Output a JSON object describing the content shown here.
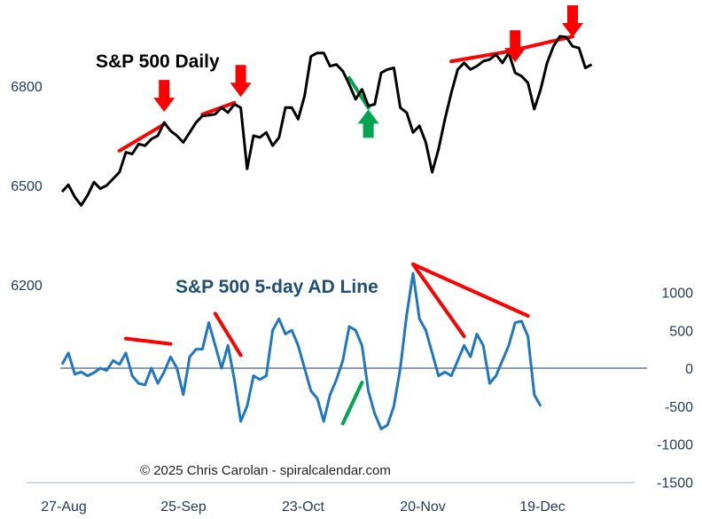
{
  "copyright": "© 2025 Chris Carolan - spiralcalendar.com",
  "chart_data": [
    {
      "type": "line",
      "title": "S&P 500 Daily",
      "ylim": [
        6200,
        6980
      ],
      "y_ticks": [
        6200,
        6500,
        6800
      ],
      "x_tick_labels": [
        "27-Aug",
        "25-Sep",
        "23-Oct",
        "20-Nov",
        "19-Dec"
      ],
      "color": "#000000",
      "values": [
        6481,
        6502,
        6465,
        6440,
        6470,
        6510,
        6490,
        6500,
        6520,
        6540,
        6600,
        6595,
        6625,
        6620,
        6640,
        6650,
        6690,
        6665,
        6650,
        6630,
        6660,
        6690,
        6710,
        6712,
        6715,
        6735,
        6720,
        6745,
        6735,
        6550,
        6650,
        6645,
        6660,
        6620,
        6645,
        6735,
        6735,
        6700,
        6770,
        6890,
        6900,
        6900,
        6860,
        6865,
        6845,
        6805,
        6760,
        6790,
        6740,
        6745,
        6840,
        6850,
        6855,
        6735,
        6720,
        6660,
        6680,
        6630,
        6540,
        6610,
        6700,
        6780,
        6850,
        6870,
        6850,
        6860,
        6875,
        6880,
        6895,
        6870,
        6900,
        6840,
        6830,
        6810,
        6730,
        6790,
        6870,
        6920,
        6950,
        6948,
        6920,
        6915,
        6855,
        6865
      ],
      "annotations": {
        "trendlines": [
          {
            "from": [
              9,
              6610
            ],
            "to": [
              16,
              6690
            ],
            "color": "#ff0000"
          },
          {
            "from": [
              22,
              6720
            ],
            "to": [
              27,
              6755
            ],
            "color": "#ff0000"
          },
          {
            "from": [
              45,
              6830
            ],
            "to": [
              48,
              6740
            ],
            "color": "#00a550"
          },
          {
            "from": [
              61,
              6880
            ],
            "to": [
              70,
              6910
            ],
            "color": "#ff0000"
          },
          {
            "from": [
              70,
              6910
            ],
            "to": [
              80,
              6955
            ],
            "color": "#ff0000"
          }
        ],
        "arrows_down": [
          16,
          28,
          71,
          80
        ],
        "arrows_up": [
          48
        ]
      }
    },
    {
      "type": "line",
      "title": "S&P 500 5-day AD Line",
      "ylim": [
        -1500,
        1300
      ],
      "y_ticks": [
        -1500,
        -1000,
        -500,
        0,
        500,
        1000
      ],
      "color": "#1f77c4",
      "values": [
        50,
        200,
        -80,
        -50,
        -100,
        -60,
        0,
        -30,
        100,
        50,
        200,
        -100,
        -200,
        -220,
        0,
        -200,
        -50,
        150,
        0,
        -350,
        150,
        250,
        250,
        600,
        300,
        0,
        300,
        -150,
        -700,
        -500,
        -100,
        -150,
        -100,
        500,
        650,
        450,
        500,
        300,
        0,
        -300,
        -400,
        -700,
        -350,
        -150,
        100,
        550,
        500,
        300,
        -300,
        -600,
        -800,
        -750,
        -500,
        0,
        700,
        1250,
        650,
        500,
        200,
        -100,
        -50,
        -100,
        100,
        300,
        150,
        450,
        300,
        -200,
        -100,
        100,
        300,
        600,
        620,
        420,
        -350,
        -500
      ],
      "annotations": {
        "trendlines": [
          {
            "from": [
              10,
              320
            ],
            "to": [
              17,
              250
            ],
            "color": "#ff0000"
          },
          {
            "from": [
              24,
              650
            ],
            "to": [
              28,
              100
            ],
            "color": "#ff0000"
          },
          {
            "from": [
              44,
              -800
            ],
            "to": [
              47,
              -260
            ],
            "color": "#00a550"
          },
          {
            "from": [
              55,
              1300
            ],
            "to": [
              63,
              350
            ],
            "color": "#ff0000"
          },
          {
            "from": [
              55,
              1300
            ],
            "to": [
              73,
              620
            ],
            "color": "#ff0000"
          }
        ]
      }
    }
  ]
}
